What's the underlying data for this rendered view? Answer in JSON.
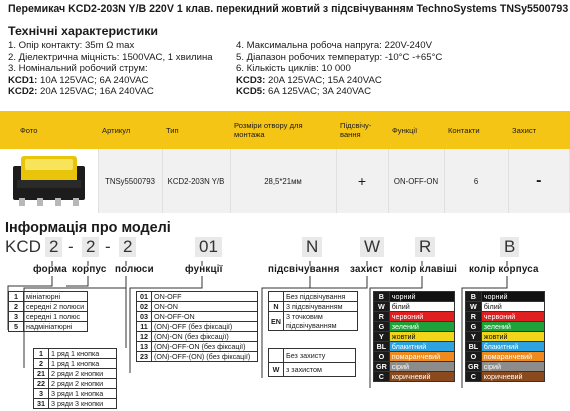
{
  "title": "Перемикач KCD2-203N Y/B 220V 1 клав. перекидний жовтий з підсвічуванням TechnoSystems TNSy5500793",
  "specs": {
    "heading": "Технічні характеристики",
    "left": [
      "1. Опір контакту: 35m Ω  max",
      "2. Діелектрична міцність:  1500VAC, 1 хвилина",
      "3. Номінальний робочий струм:"
    ],
    "kcd1_label": "KCD1:",
    "kcd1_value": " 10A 125VAC; 6A 240VAC",
    "kcd2_label": "KCD2:",
    "kcd2_value": " 20A 125VAC; 16A 240VAC",
    "right": [
      "4. Максимальна робоча напруга: 220V-240V",
      "5. Діапазон робочих температур: -10°C -+65°C",
      "6. Кількість циклів: 10 000"
    ],
    "kcd3_label": "KCD3:",
    "kcd3_value": " 20A 125VAC; 15A 240VAC",
    "kcd5_label": "KCD5:",
    "kcd5_value": " 6A 125VAC; 3A 240VAC"
  },
  "product_table": {
    "headers": [
      "Фото",
      "Артикул",
      "Тип",
      "Розміри отвору для монтажа",
      "Підсвічу-вання",
      "Функції",
      "Контакти",
      "Захист"
    ],
    "row": {
      "article": "TNSy5500793",
      "type": "KCD2-203N Y/B",
      "hole_size": "28,5*21мм",
      "backlight": "+",
      "functions": "ON-OFF-ON",
      "contacts": "6",
      "protection": "-"
    }
  },
  "model_info": {
    "heading": "Інформація про моделі",
    "code_prefix": "KCD",
    "code_parts": [
      "2",
      "-",
      "2",
      "-",
      "2",
      "01",
      "N",
      "W",
      "R",
      "B"
    ],
    "labels": [
      "форма",
      "корпус",
      "полюси",
      "функції",
      "підсвічування",
      "захист",
      "колір клавіші",
      "колір корпуса"
    ],
    "forma": [
      {
        "k": "1",
        "v": "мініатюрні"
      },
      {
        "k": "2",
        "v": "середні 2 полюси"
      },
      {
        "k": "3",
        "v": "середні 1 полюс"
      },
      {
        "k": "5",
        "v": "надмініатюрні"
      }
    ],
    "poles": [
      {
        "k": "1",
        "v": "1 ряд 1 кнопка"
      },
      {
        "k": "2",
        "v": "1 ряд 1 кнопка"
      },
      {
        "k": "21",
        "v": "2 ряди 2 кнопки"
      },
      {
        "k": "22",
        "v": "2 ряди 2 кнопки"
      },
      {
        "k": "3",
        "v": "3 ряди 1 кнопка"
      },
      {
        "k": "31",
        "v": "3 ряди 3 кнопки"
      }
    ],
    "functions": [
      {
        "k": "01",
        "v": "ON-OFF"
      },
      {
        "k": "02",
        "v": "ON-ON"
      },
      {
        "k": "03",
        "v": "ON-OFF-ON"
      },
      {
        "k": "11",
        "v": "(ON)-OFF (без фіксації)"
      },
      {
        "k": "12",
        "v": "(ON)-ON (без фіксації)"
      },
      {
        "k": "13",
        "v": "(ON)-OFF-ON (без фіксації)"
      },
      {
        "k": "23",
        "v": "(ON)-OFF-(ON) (без фіксації)"
      }
    ],
    "backlight": [
      {
        "k": "",
        "v": "Без підсвічування"
      },
      {
        "k": "N",
        "v": "3 підсвічуванням"
      },
      {
        "k": "EN",
        "v": "3 точковим підсвічуванням"
      }
    ],
    "protection": [
      {
        "k": "",
        "v": "Без захисту"
      },
      {
        "k": "W",
        "v": "з захистом"
      }
    ],
    "colors": [
      {
        "k": "B",
        "v": "чорний",
        "color": "#111111"
      },
      {
        "k": "W",
        "v": "білий",
        "color": "#ffffff"
      },
      {
        "k": "R",
        "v": "червоний",
        "color": "#e02020"
      },
      {
        "k": "G",
        "v": "зелений",
        "color": "#1fa23a"
      },
      {
        "k": "Y",
        "v": "жовтий",
        "color": "#f2d51a"
      },
      {
        "k": "BL",
        "v": "блакитний",
        "color": "#2fa3e0"
      },
      {
        "k": "O",
        "v": "помаранчевий",
        "color": "#f08a1c"
      },
      {
        "k": "GR",
        "v": "сірий",
        "color": "#8c8c8c"
      },
      {
        "k": "C",
        "v": "коричневий",
        "color": "#8a4a1e"
      }
    ]
  }
}
